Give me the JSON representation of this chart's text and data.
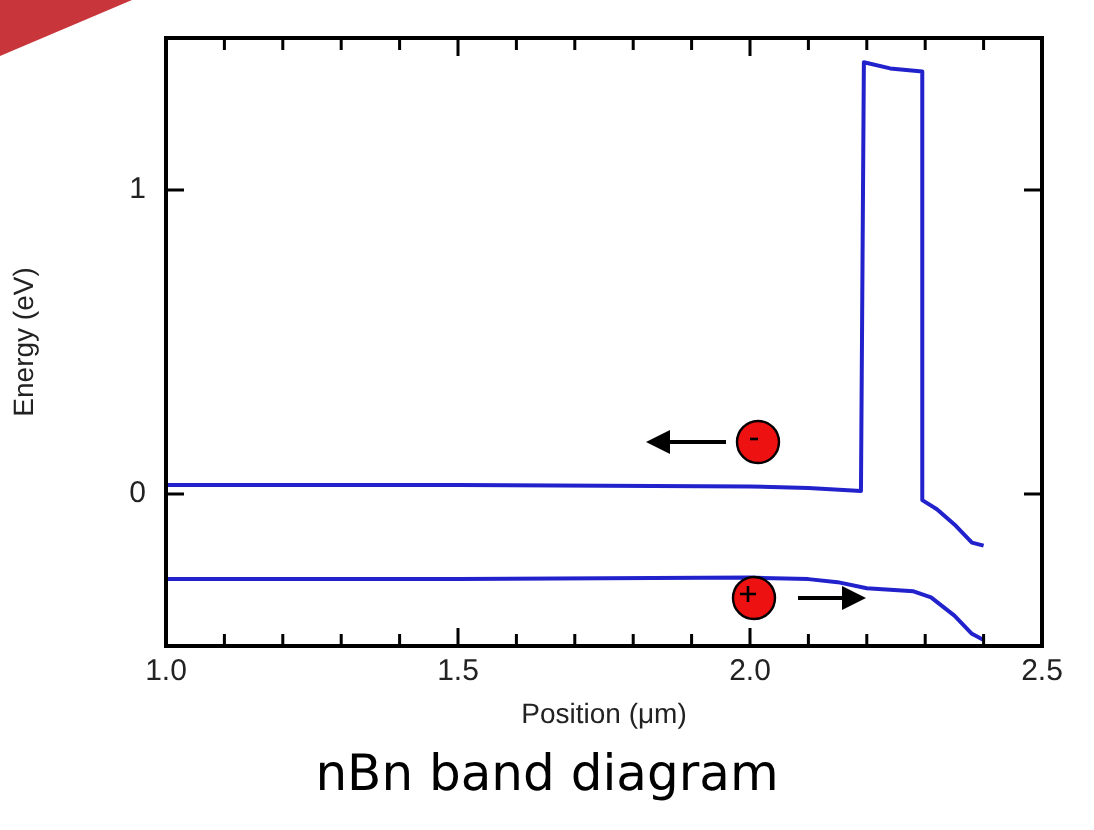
{
  "chart_data": {
    "type": "line",
    "title": "nBn band diagram",
    "xlabel": "Position (μm)",
    "ylabel": "Energy (eV)",
    "xlim": [
      1.0,
      2.5
    ],
    "ylim": [
      -0.5,
      1.5
    ],
    "xticks": [
      {
        "value": 1.0,
        "label": "1.0"
      },
      {
        "value": 1.1,
        "label": null
      },
      {
        "value": 1.2,
        "label": null
      },
      {
        "value": 1.3,
        "label": null
      },
      {
        "value": 1.4,
        "label": null
      },
      {
        "value": 1.5,
        "label": "1.5"
      },
      {
        "value": 1.6,
        "label": null
      },
      {
        "value": 1.7,
        "label": null
      },
      {
        "value": 1.8,
        "label": null
      },
      {
        "value": 1.9,
        "label": null
      },
      {
        "value": 2.0,
        "label": "2.0"
      },
      {
        "value": 2.1,
        "label": null
      },
      {
        "value": 2.2,
        "label": null
      },
      {
        "value": 2.3,
        "label": null
      },
      {
        "value": 2.4,
        "label": null
      },
      {
        "value": 2.5,
        "label": "2.5"
      }
    ],
    "yticks": [
      0,
      1
    ],
    "series": [
      {
        "color": "#2222cc",
        "x": [
          1.0,
          1.5,
          2.0,
          2.1,
          2.19,
          2.195,
          2.24,
          2.295,
          2.295,
          2.32,
          2.35,
          2.38,
          2.4
        ],
        "values": [
          0.03,
          0.03,
          0.025,
          0.02,
          0.01,
          1.42,
          1.4,
          1.39,
          -0.02,
          -0.05,
          -0.1,
          -0.16,
          -0.17
        ]
      },
      {
        "color": "#2222cc",
        "x": [
          1.0,
          1.5,
          2.0,
          2.1,
          2.15,
          2.2,
          2.28,
          2.31,
          2.35,
          2.38,
          2.4
        ],
        "values": [
          -0.28,
          -0.28,
          -0.275,
          -0.28,
          -0.29,
          -0.31,
          -0.32,
          -0.34,
          -0.4,
          -0.46,
          -0.48
        ]
      }
    ]
  }
}
